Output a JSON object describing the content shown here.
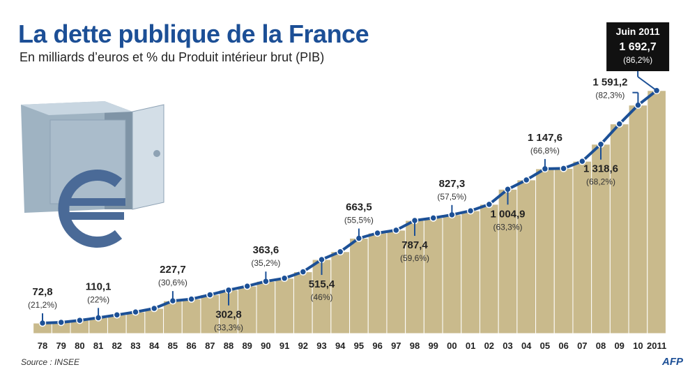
{
  "title": "La dette publique de la France",
  "subtitle": "En milliards d’euros et % du Produit intérieur brut (PIB)",
  "source": "Source : INSEE",
  "logo_text": "AFP",
  "colors": {
    "title": "#1c4f96",
    "line": "#1c5096",
    "bars": "#c9ba8c",
    "highlight": "#111111"
  },
  "icon": "safe-with-euro-icon",
  "chart_data": {
    "type": "bar",
    "categories": [
      "78",
      "79",
      "80",
      "81",
      "82",
      "83",
      "84",
      "85",
      "86",
      "87",
      "88",
      "89",
      "90",
      "91",
      "92",
      "93",
      "94",
      "95",
      "96",
      "97",
      "98",
      "99",
      "00",
      "01",
      "02",
      "03",
      "04",
      "05",
      "06",
      "07",
      "08",
      "09",
      "10",
      "2011"
    ],
    "series": [
      {
        "values": [
          72.8,
          78,
          92,
          110.1,
          130,
          150,
          175,
          227.7,
          240,
          270,
          302.8,
          330,
          363.6,
          385,
          430,
          515.4,
          570,
          663.5,
          700,
          720,
          787.4,
          805,
          827.3,
          855,
          900,
          1004.9,
          1070,
          1147.6,
          1150,
          1200,
          1318.6,
          1460,
          1591.2,
          1692.7
        ]
      }
    ],
    "labels": [
      {
        "index": 0,
        "value": "72,8",
        "pct": "(21,2%)",
        "pos": "above"
      },
      {
        "index": 3,
        "value": "110,1",
        "pct": "(22%)",
        "pos": "above"
      },
      {
        "index": 7,
        "value": "227,7",
        "pct": "(30,6%)",
        "pos": "above"
      },
      {
        "index": 10,
        "value": "302,8",
        "pct": "(33,3%)",
        "pos": "below"
      },
      {
        "index": 12,
        "value": "363,6",
        "pct": "(35,2%)",
        "pos": "above"
      },
      {
        "index": 15,
        "value": "515,4",
        "pct": "(46%)",
        "pos": "below"
      },
      {
        "index": 17,
        "value": "663,5",
        "pct": "(55,5%)",
        "pos": "above"
      },
      {
        "index": 20,
        "value": "787,4",
        "pct": "(59,6%)",
        "pos": "below"
      },
      {
        "index": 22,
        "value": "827,3",
        "pct": "(57,5%)",
        "pos": "above"
      },
      {
        "index": 25,
        "value": "1 004,9",
        "pct": "(63,3%)",
        "pos": "below"
      },
      {
        "index": 27,
        "value": "1 147,6",
        "pct": "(66,8%)",
        "pos": "above"
      },
      {
        "index": 30,
        "value": "1 318,6",
        "pct": "(68,2%)",
        "pos": "below"
      },
      {
        "index": 32,
        "value": "1 591,2",
        "pct": "(82,3%)",
        "pos": "above-left"
      }
    ],
    "highlight": {
      "index": 33,
      "date": "Juin 2011",
      "value": "1 692,7",
      "pct": "(86,2%)"
    },
    "ylim": [
      0,
      1750
    ],
    "grid": false,
    "legend": "none"
  }
}
